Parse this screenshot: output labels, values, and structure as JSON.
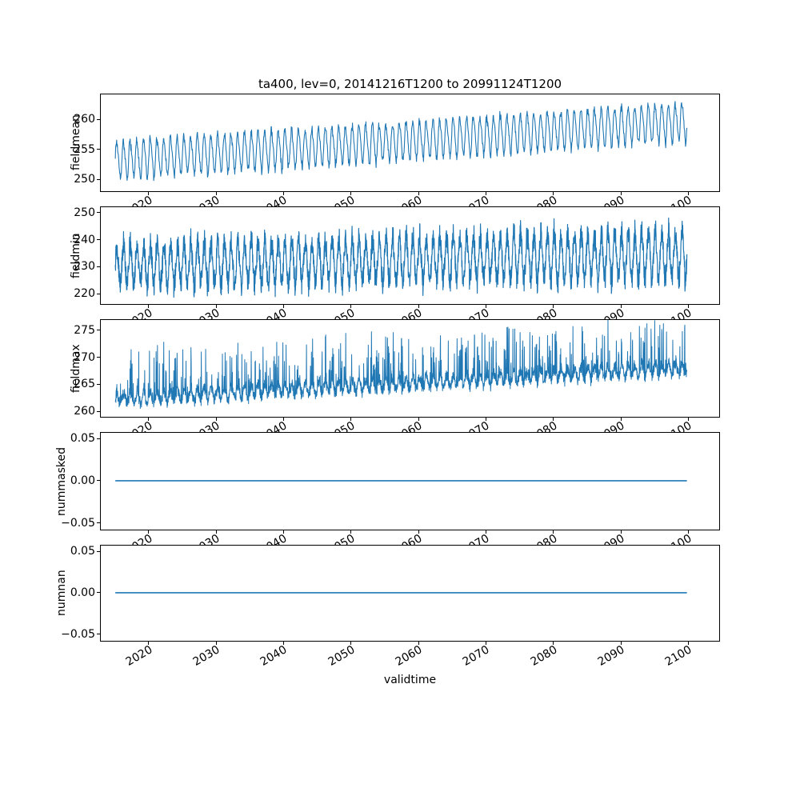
{
  "figure": {
    "title": "ta400, lev=0, 20141216T1200 to 20991124T1200",
    "xlabel": "validtime",
    "line_color": "#1f77b4",
    "background": "#ffffff"
  },
  "x_axis": {
    "lim": [
      2012.8,
      2104.7
    ],
    "ticks": [
      {
        "v": 2020,
        "label": "2020"
      },
      {
        "v": 2030,
        "label": "2030"
      },
      {
        "v": 2040,
        "label": "2040"
      },
      {
        "v": 2050,
        "label": "2050"
      },
      {
        "v": 2060,
        "label": "2060"
      },
      {
        "v": 2070,
        "label": "2070"
      },
      {
        "v": 2080,
        "label": "2080"
      },
      {
        "v": 2090,
        "label": "2090"
      },
      {
        "v": 2100,
        "label": "2100"
      }
    ]
  },
  "chart_data": [
    {
      "type": "line",
      "ylabel": "fieldmean",
      "x_range": [
        2014.96,
        2099.9
      ],
      "ylim": [
        248.0,
        264.2
      ],
      "yticks": [
        {
          "v": 250,
          "label": "250"
        },
        {
          "v": 255,
          "label": "255"
        },
        {
          "v": 260,
          "label": "260"
        }
      ],
      "trend": {
        "start_mean": 253.2,
        "end_mean": 259.7
      },
      "oscillation": {
        "period_years": 1,
        "amplitude": 3.1
      },
      "stroke_width": 1.1,
      "synth": {
        "kind": "seasonal",
        "n": 1700,
        "base": 253.2,
        "slope": 0.076,
        "season_amp": 3.1,
        "noise": 0.45,
        "seed": 7
      }
    },
    {
      "type": "line",
      "ylabel": "fieldmin",
      "x_range": [
        2014.96,
        2099.9
      ],
      "ylim": [
        216.2,
        252.0
      ],
      "yticks": [
        {
          "v": 220,
          "label": "220"
        },
        {
          "v": 230,
          "label": "230"
        },
        {
          "v": 240,
          "label": "240"
        },
        {
          "v": 250,
          "label": "250"
        }
      ],
      "trend": {
        "start_mean": 230.6,
        "end_mean": 234.4
      },
      "oscillation": {
        "period_years": 1,
        "amplitude": 8.0
      },
      "stroke_width": 1.2,
      "synth": {
        "kind": "jagged",
        "n": 3000,
        "base": 230.6,
        "slope": 0.045,
        "season_amp": 7.3,
        "amp_slope": 0.018,
        "noise": 3.8,
        "seed": 13
      }
    },
    {
      "type": "line",
      "ylabel": "fieldmax",
      "x_range": [
        2014.96,
        2099.9
      ],
      "ylim": [
        259.0,
        276.9
      ],
      "yticks": [
        {
          "v": 260,
          "label": "260"
        },
        {
          "v": 265,
          "label": "265"
        },
        {
          "v": 270,
          "label": "270"
        },
        {
          "v": 275,
          "label": "275"
        }
      ],
      "trend": {
        "start_mean": 262.0,
        "end_mean": 267.8
      },
      "oscillation": {
        "period_years": 1,
        "amplitude": 1.1,
        "spikes_up_to": 277
      },
      "stroke_width": 1.0,
      "synth": {
        "kind": "spiky",
        "n": 3000,
        "base": 261.7,
        "slope": 0.068,
        "spike_max": 9.3,
        "seed": 29
      }
    },
    {
      "type": "line",
      "ylabel": "nummasked",
      "x_range": [
        2014.96,
        2099.9
      ],
      "ylim": [
        -0.058,
        0.057
      ],
      "yticks": [
        {
          "v": 0.05,
          "label": "0.05"
        },
        {
          "v": 0.0,
          "label": "0.00"
        },
        {
          "v": -0.05,
          "label": "−0.05"
        }
      ],
      "constant_value": 0.0,
      "stroke_width": 1.6,
      "synth": {
        "kind": "flat",
        "n": 2,
        "value": 0.0,
        "seed": 1
      }
    },
    {
      "type": "line",
      "ylabel": "numnan",
      "x_range": [
        2014.96,
        2099.9
      ],
      "ylim": [
        -0.058,
        0.057
      ],
      "yticks": [
        {
          "v": 0.05,
          "label": "0.05"
        },
        {
          "v": 0.0,
          "label": "0.00"
        },
        {
          "v": -0.05,
          "label": "−0.05"
        }
      ],
      "constant_value": 0.0,
      "stroke_width": 1.6,
      "synth": {
        "kind": "flat",
        "n": 2,
        "value": 0.0,
        "seed": 2
      }
    }
  ]
}
